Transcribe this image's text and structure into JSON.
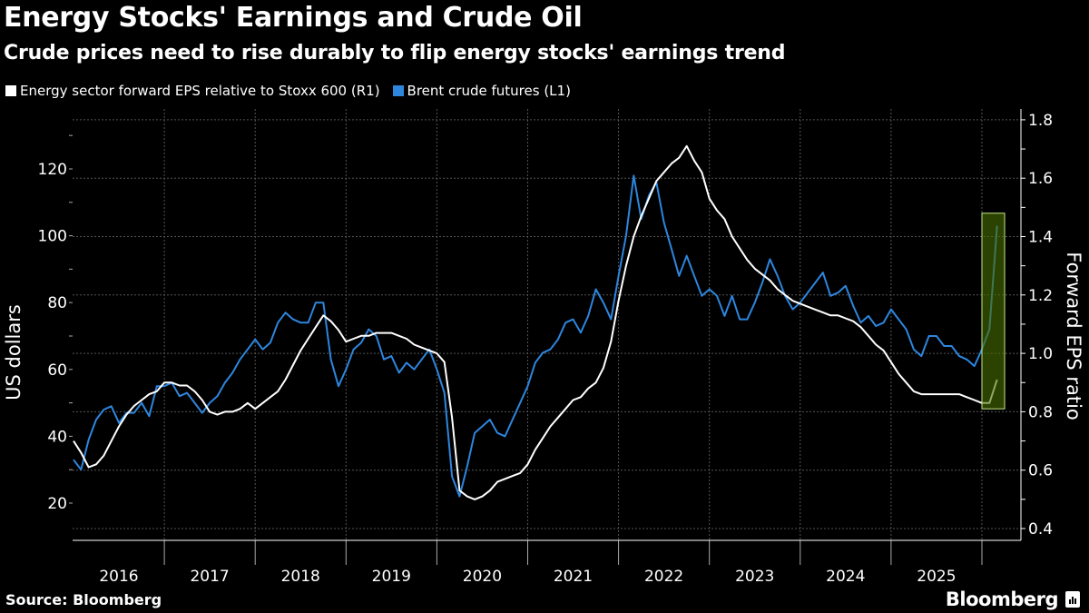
{
  "title": "Energy Stocks' Earnings and Crude Oil",
  "subtitle": "Crude prices need to rise durably to flip energy stocks' earnings trend",
  "source": "Source: Bloomberg",
  "logo": "Bloomberg",
  "chart_data": {
    "type": "line",
    "grid": true,
    "legend_placement": "top-left",
    "x_ticks": [
      "2016",
      "2017",
      "2018",
      "2019",
      "2020",
      "2021",
      "2022",
      "2023",
      "2024",
      "2025"
    ],
    "xlim": [
      "2016-01",
      "2026-04"
    ],
    "left_axis": {
      "label": "US dollars",
      "ticks": [
        20,
        40,
        60,
        80,
        100,
        120
      ],
      "ylim": [
        15,
        135
      ]
    },
    "right_axis": {
      "label": "Forward EPS ratio",
      "ticks": [
        "0.4",
        "0.6",
        "0.8",
        "1.0",
        "1.2",
        "1.4",
        "1.6",
        "1.8"
      ],
      "ylim": [
        0.37,
        1.84
      ]
    },
    "series": [
      {
        "name": "Energy sector forward EPS relative to Stoxx 600 (R1)",
        "axis": "right",
        "color": "#ffffff",
        "start": "2016-01",
        "values": [
          0.7,
          0.66,
          0.61,
          0.62,
          0.65,
          0.7,
          0.75,
          0.79,
          0.82,
          0.84,
          0.86,
          0.87,
          0.9,
          0.9,
          0.89,
          0.89,
          0.87,
          0.84,
          0.8,
          0.79,
          0.8,
          0.8,
          0.81,
          0.83,
          0.81,
          0.83,
          0.85,
          0.87,
          0.91,
          0.96,
          1.01,
          1.05,
          1.09,
          1.13,
          1.11,
          1.08,
          1.04,
          1.05,
          1.06,
          1.06,
          1.07,
          1.07,
          1.07,
          1.06,
          1.05,
          1.03,
          1.02,
          1.01,
          1.0,
          0.97,
          0.78,
          0.53,
          0.51,
          0.5,
          0.51,
          0.53,
          0.56,
          0.57,
          0.58,
          0.59,
          0.62,
          0.67,
          0.71,
          0.75,
          0.78,
          0.81,
          0.84,
          0.85,
          0.88,
          0.9,
          0.95,
          1.04,
          1.18,
          1.3,
          1.4,
          1.47,
          1.53,
          1.59,
          1.62,
          1.65,
          1.67,
          1.71,
          1.66,
          1.62,
          1.53,
          1.49,
          1.46,
          1.4,
          1.36,
          1.32,
          1.29,
          1.27,
          1.25,
          1.22,
          1.2,
          1.18,
          1.17,
          1.16,
          1.15,
          1.14,
          1.13,
          1.13,
          1.12,
          1.11,
          1.09,
          1.06,
          1.03,
          1.01,
          0.97,
          0.93,
          0.9,
          0.87,
          0.86,
          0.86,
          0.86,
          0.86,
          0.86,
          0.86,
          0.85,
          0.84,
          0.83,
          0.83,
          0.91
        ]
      },
      {
        "name": "Brent crude futures (L1)",
        "axis": "left",
        "color": "#2e86de",
        "start": "2016-01",
        "values": [
          33,
          30,
          39,
          45,
          48,
          49,
          44,
          47,
          47,
          50,
          46,
          55,
          55,
          56,
          52,
          53,
          50,
          47,
          50,
          52,
          56,
          59,
          63,
          66,
          69,
          66,
          68,
          74,
          77,
          75,
          74,
          74,
          80,
          80,
          63,
          55,
          60,
          66,
          68,
          72,
          70,
          63,
          64,
          59,
          62,
          60,
          63,
          66,
          60,
          53,
          28,
          22,
          31,
          41,
          43,
          45,
          41,
          40,
          45,
          50,
          55,
          62,
          65,
          66,
          69,
          74,
          75,
          71,
          76,
          84,
          80,
          75,
          88,
          100,
          118,
          105,
          112,
          116,
          104,
          96,
          88,
          94,
          88,
          82,
          84,
          82,
          76,
          82,
          75,
          75,
          80,
          86,
          93,
          88,
          82,
          78,
          80,
          83,
          86,
          89,
          82,
          83,
          85,
          79,
          74,
          76,
          73,
          74,
          78,
          75,
          72,
          66,
          64,
          70,
          70,
          67,
          67,
          64,
          63,
          61,
          66,
          72,
          103
        ]
      }
    ],
    "annotation": {
      "type": "highlight-box",
      "x_range": [
        "2026-01",
        "2026-04"
      ],
      "right_axis_range": [
        0.81,
        1.48
      ],
      "fill": "#4a6e00",
      "stroke": "#c5e88a"
    }
  }
}
